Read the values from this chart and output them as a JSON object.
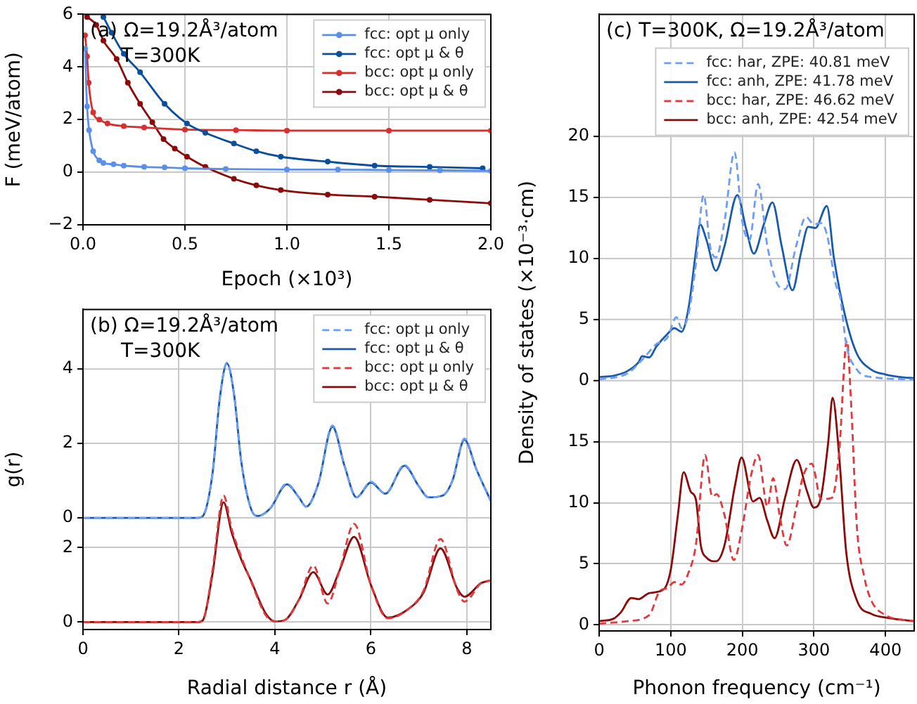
{
  "chart_data": [
    {
      "type": "line",
      "xlabel": "Epoch (×10³)",
      "ylabel": "F (meV/atom)",
      "annotations": [
        "(a) Ω=19.2Å³/atom",
        "T=300K"
      ],
      "xlim": [
        0,
        2
      ],
      "ylim": [
        -2,
        6
      ],
      "xticks": [
        {
          "value": 0,
          "label": "0.0"
        },
        0.5,
        {
          "value": 1,
          "label": "1.0"
        },
        1.5,
        {
          "value": 2,
          "label": "2.0"
        }
      ],
      "yticks": [
        {
          "value": -2,
          "label": "−2"
        },
        0,
        2,
        4,
        6
      ],
      "grid": true,
      "legend": "top right",
      "marker": "circle",
      "series": [
        {
          "name": "fcc: opt μ only",
          "color": "#5b8fe8",
          "x": [
            0.01,
            0.02,
            0.03,
            0.05,
            0.08,
            0.1,
            0.15,
            0.2,
            0.3,
            0.4,
            0.5,
            0.7,
            1.0,
            1.25,
            1.5,
            1.75,
            2.0
          ],
          "values": [
            4.7,
            2.5,
            1.6,
            0.8,
            0.45,
            0.35,
            0.3,
            0.25,
            0.2,
            0.18,
            0.15,
            0.12,
            0.1,
            0.1,
            0.08,
            0.07,
            0.05
          ]
        },
        {
          "name": "fcc: opt μ & θ",
          "color": "#0b4f9c",
          "x": [
            0.1,
            0.14,
            0.2,
            0.28,
            0.4,
            0.51,
            0.6,
            0.74,
            0.85,
            0.97,
            1.2,
            1.43,
            1.7,
            1.96
          ],
          "values": [
            5.9,
            5.3,
            4.5,
            3.8,
            2.6,
            1.85,
            1.5,
            1.09,
            0.8,
            0.59,
            0.4,
            0.25,
            0.2,
            0.15
          ]
        },
        {
          "name": "bcc: opt μ only",
          "color": "#d62f2f",
          "x": [
            0.01,
            0.02,
            0.028,
            0.05,
            0.08,
            0.12,
            0.2,
            0.3,
            0.5,
            0.75,
            1.0,
            1.5,
            2.0
          ],
          "values": [
            5.2,
            4.4,
            3.4,
            2.27,
            2.0,
            1.85,
            1.75,
            1.7,
            1.62,
            1.6,
            1.58,
            1.58,
            1.58
          ]
        },
        {
          "name": "bcc: opt μ & θ",
          "color": "#8b0a0a",
          "x": [
            0.02,
            0.065,
            0.1,
            0.165,
            0.22,
            0.28,
            0.34,
            0.395,
            0.45,
            0.51,
            0.6,
            0.74,
            0.85,
            0.97,
            1.2,
            1.43,
            1.7,
            2.0
          ],
          "values": [
            5.9,
            5.6,
            5.0,
            4.3,
            3.4,
            2.6,
            1.9,
            1.26,
            0.9,
            0.59,
            0.2,
            -0.25,
            -0.5,
            -0.68,
            -0.85,
            -0.93,
            -1.05,
            -1.18
          ]
        }
      ]
    },
    {
      "type": "line",
      "xlabel": "Radial distance r (Å)",
      "y2label": "g(r)",
      "annotations": [
        "(b) Ω=19.2Å³/atom",
        "T=300K"
      ],
      "xlim": [
        0,
        8.5
      ],
      "ylim": [
        -0.2,
        8.4
      ],
      "y2lim": [
        -3.0,
        5.6
      ],
      "xticks": [
        0,
        2,
        4,
        6,
        8
      ],
      "yticks": [
        0,
        2
      ],
      "y2ticks": [
        0,
        2,
        4
      ],
      "grid": true,
      "legend": "top right",
      "series": [
        {
          "name": "fcc: opt μ only",
          "color": "#6f9ef0",
          "line_style": "dashed",
          "axis": "y2",
          "x": [
            0,
            2.4,
            2.5,
            2.7,
            2.85,
            3.0,
            3.15,
            3.3,
            3.5,
            3.65,
            3.9,
            4.25,
            4.5,
            4.65,
            4.9,
            5.2,
            5.45,
            5.7,
            6.0,
            6.3,
            6.7,
            7.0,
            7.2,
            7.5,
            7.7,
            7.95,
            8.2,
            8.5
          ],
          "values": [
            0,
            0,
            0.05,
            1.2,
            3.2,
            4.17,
            3.3,
            1.5,
            0.25,
            0.05,
            0.25,
            0.92,
            0.55,
            0.3,
            0.9,
            2.48,
            1.4,
            0.55,
            0.97,
            0.65,
            1.42,
            0.85,
            0.55,
            0.6,
            1.0,
            2.13,
            1.3,
            0.45
          ]
        },
        {
          "name": "fcc: opt μ & θ",
          "color": "#1a5aab",
          "line_style": "solid",
          "axis": "y2",
          "x": [
            0,
            2.4,
            2.5,
            2.7,
            2.85,
            3.0,
            3.15,
            3.3,
            3.5,
            3.65,
            3.9,
            4.25,
            4.5,
            4.65,
            4.9,
            5.2,
            5.45,
            5.7,
            6.0,
            6.3,
            6.7,
            7.0,
            7.2,
            7.5,
            7.7,
            7.95,
            8.2,
            8.5
          ],
          "values": [
            0,
            0,
            0.05,
            1.2,
            3.2,
            4.15,
            3.3,
            1.5,
            0.25,
            0.05,
            0.25,
            0.9,
            0.55,
            0.3,
            0.9,
            2.45,
            1.4,
            0.55,
            0.95,
            0.65,
            1.4,
            0.85,
            0.55,
            0.6,
            1.0,
            2.1,
            1.3,
            0.45
          ]
        },
        {
          "name": "bcc: opt μ only",
          "color": "#e0393e",
          "line_style": "dashed",
          "x": [
            0,
            2.4,
            2.5,
            2.7,
            2.93,
            3.1,
            3.3,
            3.5,
            3.8,
            4.0,
            4.2,
            4.5,
            4.8,
            5.1,
            5.35,
            5.65,
            6.0,
            6.35,
            6.8,
            7.1,
            7.45,
            7.8,
            7.95,
            8.3,
            8.5
          ],
          "values": [
            0,
            0,
            0.05,
            1.4,
            3.4,
            2.5,
            1.75,
            1.1,
            0.2,
            0.02,
            0.05,
            0.6,
            1.52,
            0.5,
            1.4,
            2.64,
            1.0,
            0.1,
            0.37,
            0.85,
            2.23,
            0.85,
            0.55,
            1.05,
            1.12
          ]
        },
        {
          "name": "bcc: opt μ & θ",
          "color": "#8b0a0a",
          "line_style": "solid",
          "x": [
            0,
            2.4,
            2.5,
            2.7,
            2.93,
            3.1,
            3.3,
            3.5,
            3.8,
            4.0,
            4.2,
            4.5,
            4.8,
            5.1,
            5.35,
            5.65,
            6.0,
            6.35,
            6.8,
            7.1,
            7.45,
            7.8,
            7.95,
            8.3,
            8.5
          ],
          "values": [
            0,
            0,
            0.05,
            1.3,
            3.22,
            2.4,
            1.68,
            1.12,
            0.25,
            0.02,
            0.05,
            0.6,
            1.34,
            0.74,
            1.4,
            2.29,
            1.0,
            0.12,
            0.37,
            0.8,
            1.98,
            0.9,
            0.68,
            1.05,
            1.12
          ]
        }
      ]
    },
    {
      "type": "line",
      "xlabel": "Phonon frequency (cm⁻¹)",
      "y2label": "Density of states (×10⁻³·cm)",
      "annotations": [
        "(c) T=300K, Ω=19.2Å³/atom"
      ],
      "xlim": [
        0,
        440
      ],
      "ylim": [
        -0.5,
        50
      ],
      "y2lim": [
        -20.5,
        30
      ],
      "xticks": [
        0,
        100,
        200,
        300,
        400
      ],
      "yticks": [
        0,
        5,
        10,
        15
      ],
      "y2ticks": [
        0,
        5,
        10,
        15,
        20
      ],
      "grid": true,
      "legend": "top right",
      "series": [
        {
          "name": "fcc: har, ZPE: 40.81 meV",
          "color": "#6f9ef0",
          "line_style": "dashed",
          "axis": "y2",
          "x": [
            0,
            40,
            60,
            80,
            95,
            108,
            115,
            125,
            135,
            146,
            155,
            163,
            175,
            189,
            200,
            210,
            222,
            235,
            250,
            260,
            275,
            289,
            300,
            310,
            318,
            330,
            337,
            345,
            360,
            380,
            440
          ],
          "values": [
            0.1,
            0.6,
            1.7,
            3.0,
            3.5,
            5.2,
            4.3,
            5.5,
            9.5,
            15.2,
            11,
            10.1,
            13,
            18.7,
            13,
            11.5,
            16.1,
            11,
            7.8,
            7.5,
            11,
            13.4,
            12.8,
            12.9,
            12.0,
            8,
            6.7,
            3,
            0.9,
            0.3,
            0.1
          ]
        },
        {
          "name": "fcc: anh, ZPE: 41.78 meV",
          "color": "#1a5aab",
          "line_style": "solid",
          "axis": "y2",
          "x": [
            0,
            20,
            40,
            55,
            60,
            70,
            80,
            95,
            105,
            115,
            125,
            135,
            141,
            150,
            163,
            175,
            193,
            205,
            216,
            230,
            242,
            255,
            270,
            282,
            292,
            302,
            318,
            328,
            344,
            360,
            380,
            400,
            420,
            440
          ],
          "values": [
            0.3,
            0.4,
            0.8,
            1.5,
            2.0,
            1.9,
            2.8,
            3.8,
            4.3,
            4.0,
            6,
            10.5,
            12.8,
            11.5,
            9.0,
            11.0,
            15.2,
            12.5,
            10.4,
            12.8,
            14.6,
            11,
            7.4,
            10.5,
            12.6,
            12.5,
            14.3,
            10,
            5.2,
            2.2,
            0.9,
            0.5,
            0.3,
            0.2
          ]
        },
        {
          "name": "bcc: har, ZPE: 46.62 meV",
          "color": "#e0393e",
          "line_style": "dashed",
          "x": [
            0,
            40,
            70,
            85,
            95,
            105,
            115,
            125,
            135,
            148,
            158,
            164,
            175,
            188,
            200,
            212,
            222,
            235,
            243,
            252,
            262,
            275,
            285,
            297,
            310,
            325,
            335,
            346,
            352,
            360,
            370,
            380,
            400,
            440
          ],
          "values": [
            0.1,
            0.3,
            0.8,
            2.8,
            3,
            3.5,
            3.3,
            4.3,
            6.5,
            13.9,
            10.5,
            10.7,
            9,
            5.3,
            8,
            12.2,
            13.9,
            9.7,
            12,
            9,
            6.5,
            9.5,
            12.2,
            13.2,
            10.3,
            10.4,
            14,
            23.3,
            18,
            8,
            4,
            2,
            0.8,
            0.3
          ]
        },
        {
          "name": "bcc: anh, ZPE: 42.54 meV",
          "color": "#8b0a0a",
          "line_style": "solid",
          "x": [
            0,
            20,
            30,
            45,
            55,
            70,
            90,
            100,
            110,
            118,
            128,
            135,
            142,
            150,
            163,
            175,
            190,
            199,
            215,
            224,
            235,
            245,
            260,
            276,
            290,
            300,
            310,
            320,
            326,
            335,
            345,
            360,
            380,
            400,
            440
          ],
          "values": [
            0.3,
            0.5,
            1,
            2.2,
            2.1,
            2.6,
            2.9,
            4.5,
            9,
            12.5,
            10.9,
            10.3,
            6.5,
            5.5,
            5.2,
            6.5,
            11.5,
            13.7,
            10.1,
            10.4,
            8.5,
            7.1,
            10.5,
            13.5,
            11,
            9.6,
            10.5,
            15,
            18.6,
            14,
            6,
            2.0,
            0.9,
            0.6,
            0.3
          ]
        }
      ]
    }
  ]
}
